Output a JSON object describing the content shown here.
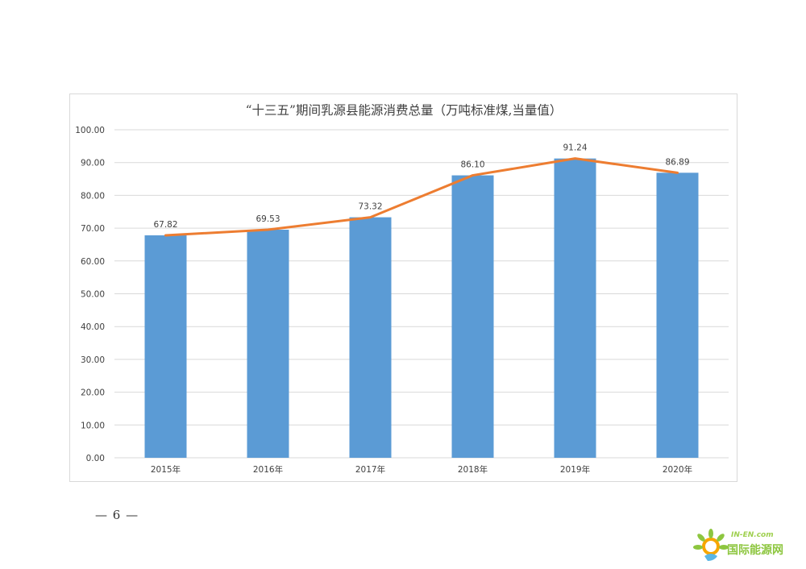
{
  "chart_data": {
    "type": "bar",
    "title": "“十三五”期间乳源县能源消费总量（万吨标准煤,当量值）",
    "categories": [
      "2015年",
      "2016年",
      "2017年",
      "2018年",
      "2019年",
      "2020年"
    ],
    "values": [
      67.82,
      69.53,
      73.32,
      86.1,
      91.24,
      86.89
    ],
    "data_labels": [
      "67.82",
      "69.53",
      "73.32",
      "86.10",
      "91.24",
      "86.89"
    ],
    "overlay_line": true,
    "ylim": [
      0,
      100
    ],
    "ytick_step": 10,
    "yticks": [
      "0.00",
      "10.00",
      "20.00",
      "30.00",
      "40.00",
      "50.00",
      "60.00",
      "70.00",
      "80.00",
      "90.00",
      "100.00"
    ],
    "xlabel": "",
    "ylabel": "",
    "grid": true,
    "legend": "none",
    "colors": {
      "bar": "#5b9bd5",
      "line": "#ed7d31",
      "grid": "#d9d9d9"
    }
  },
  "footer": {
    "page_number": "— 6 —"
  },
  "watermark": {
    "url": "IN-EN.com",
    "text": "国际能源网"
  }
}
